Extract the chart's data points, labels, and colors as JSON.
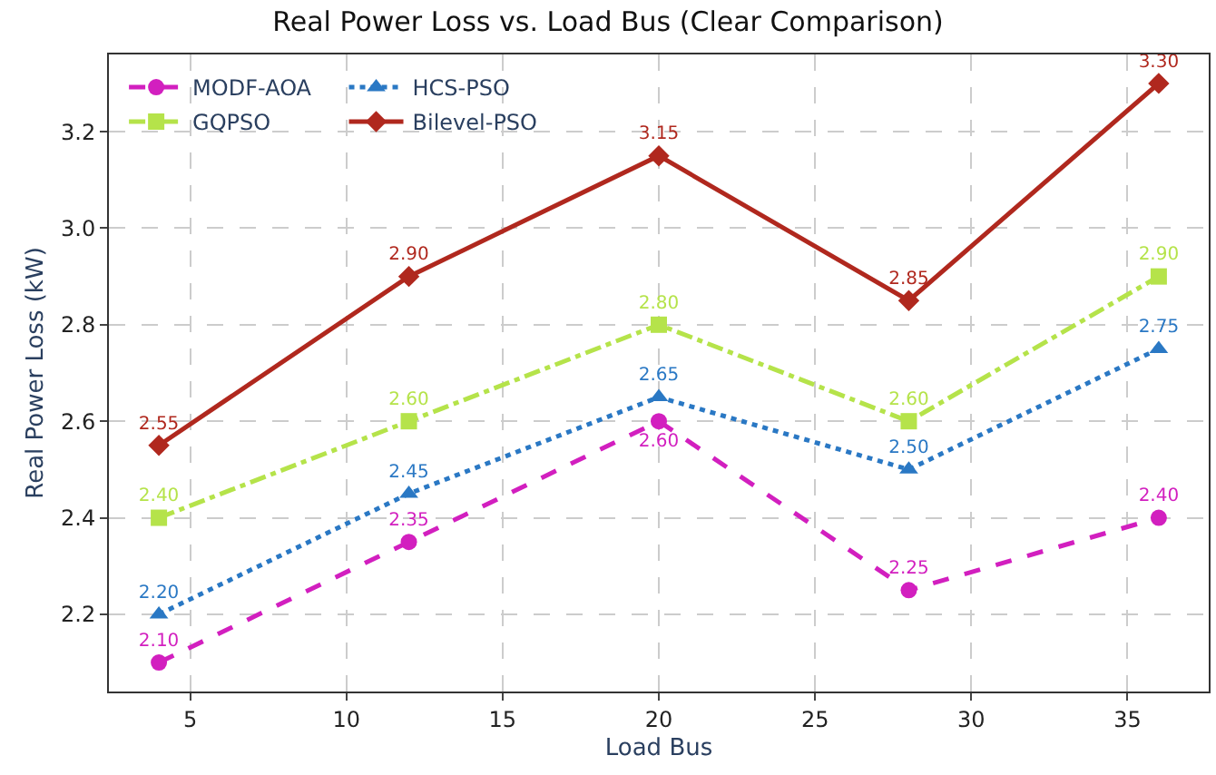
{
  "chart_data": {
    "type": "line",
    "title": "Real Power Loss vs. Load Bus (Clear Comparison)",
    "xlabel": "Load Bus",
    "ylabel": "Real Power Loss (kW)",
    "x": [
      4,
      12,
      20,
      28,
      36
    ],
    "series": [
      {
        "name": "MODF-AOA",
        "color": "#d21fbf",
        "marker": "circle",
        "line_style": "dashed",
        "values": [
          2.1,
          2.35,
          2.6,
          2.25,
          2.4
        ],
        "value_labels": [
          "2.10",
          "2.35",
          "2.60",
          "2.25",
          "2.40"
        ]
      },
      {
        "name": "GQPSO",
        "color": "#b5e34a",
        "marker": "square",
        "line_style": "dashdot",
        "values": [
          2.4,
          2.6,
          2.8,
          2.6,
          2.9
        ],
        "value_labels": [
          "2.40",
          "2.60",
          "2.80",
          "2.60",
          "2.90"
        ]
      },
      {
        "name": "HCS-PSO",
        "color": "#2a78c4",
        "marker": "triangle",
        "line_style": "dotted",
        "values": [
          2.2,
          2.45,
          2.65,
          2.5,
          2.75
        ],
        "value_labels": [
          "2.20",
          "2.45",
          "2.65",
          "2.50",
          "2.75"
        ]
      },
      {
        "name": "Bilevel-PSO",
        "color": "#b0281e",
        "marker": "diamond",
        "line_style": "solid",
        "values": [
          2.55,
          2.9,
          3.15,
          2.85,
          3.3
        ],
        "value_labels": [
          "2.55",
          "2.90",
          "3.15",
          "2.85",
          "3.30"
        ]
      }
    ],
    "xlim": [
      2.4,
      37.6
    ],
    "xticks": [
      5,
      10,
      15,
      20,
      25,
      30,
      35
    ],
    "ylim": [
      2.04,
      3.36
    ],
    "yticks": [
      {
        "value": 2.2,
        "label": "2.2"
      },
      {
        "value": 2.4,
        "label": "2.4"
      },
      {
        "value": 2.6,
        "label": "2.6"
      },
      {
        "value": 2.8,
        "label": "2.8"
      },
      {
        "value": 3.0,
        "label": "3.0"
      },
      {
        "value": 3.2,
        "label": "3.2"
      }
    ],
    "grid": true,
    "legend": "top left"
  }
}
